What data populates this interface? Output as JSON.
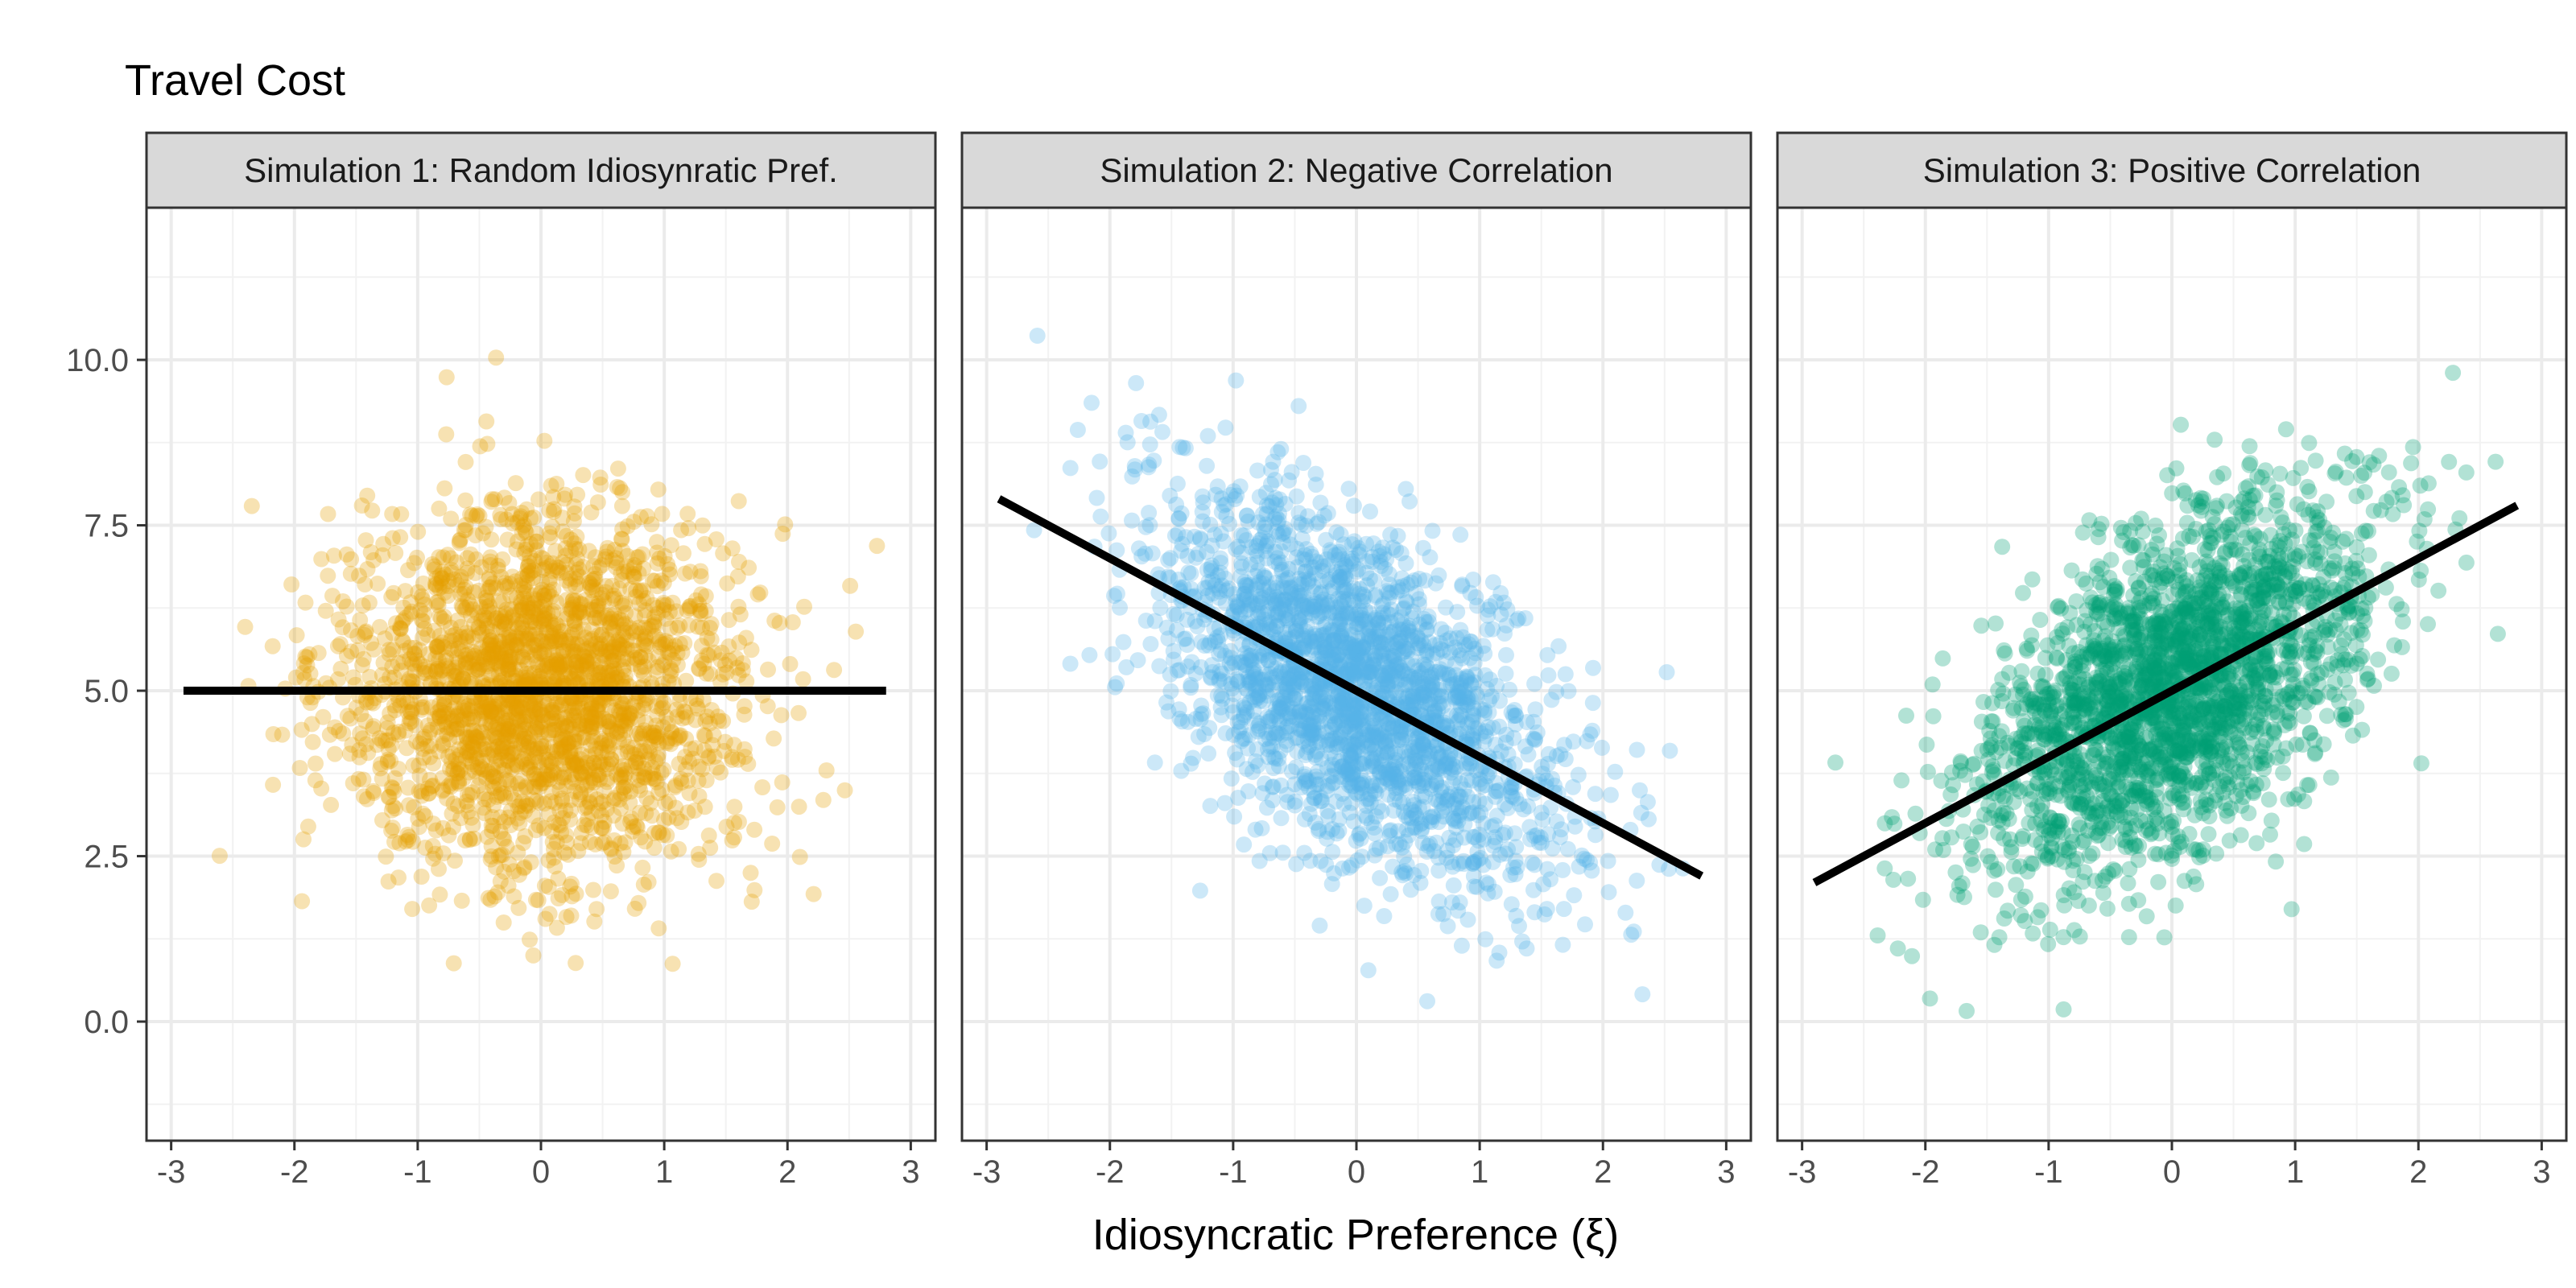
{
  "chart_data": {
    "type": "scatter",
    "title": "Travel Cost",
    "xlabel": "Idiosyncratic Preference (ξ)",
    "ylabel": "",
    "xlim": [
      -3.2,
      3.2
    ],
    "ylim": [
      -1.8,
      12.3
    ],
    "x_ticks": [
      -3,
      -2,
      -1,
      0,
      1,
      2,
      3
    ],
    "y_ticks": [
      0.0,
      2.5,
      5.0,
      7.5,
      10.0
    ],
    "x_tick_labels": [
      "-3",
      "-2",
      "-1",
      "0",
      "1",
      "2",
      "3"
    ],
    "y_tick_labels": [
      "0.0",
      "2.5",
      "5.0",
      "7.5",
      "10.0"
    ],
    "grid": true,
    "facets": [
      {
        "label": "Simulation 1: Random Idiosynratic Pref.",
        "color": "#E69F00",
        "x_mean": 0,
        "x_sd": 0.8,
        "y_mean": 5.0,
        "y_sd": 1.35,
        "corr": 0.0,
        "x_range": [
          -2.95,
          2.85
        ],
        "fit_line": {
          "x": [
            -2.9,
            2.8
          ],
          "y": [
            5.0,
            5.0
          ]
        }
      },
      {
        "label": "Simulation 2: Negative Correlation",
        "color": "#56B4E9",
        "x_mean": 0,
        "x_sd": 0.8,
        "y_mean": 5.0,
        "y_sd": 1.45,
        "corr": -0.55,
        "x_range": [
          -2.95,
          2.85
        ],
        "fit_line": {
          "x": [
            -2.9,
            2.8
          ],
          "y": [
            7.9,
            2.2
          ]
        }
      },
      {
        "label": "Simulation 3: Positive Correlation",
        "color": "#009E73",
        "x_mean": 0,
        "x_sd": 0.8,
        "y_mean": 5.0,
        "y_sd": 1.45,
        "corr": 0.55,
        "x_range": [
          -2.95,
          2.85
        ],
        "fit_line": {
          "x": [
            -2.9,
            2.8
          ],
          "y": [
            2.1,
            7.8
          ]
        }
      }
    ]
  }
}
